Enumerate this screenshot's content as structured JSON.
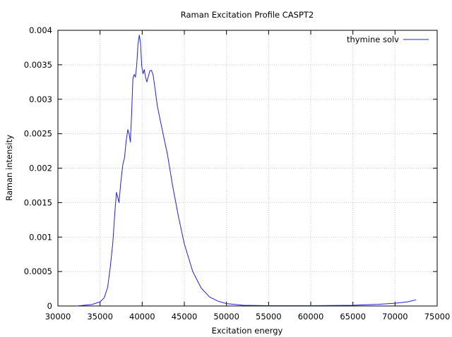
{
  "chart_data": {
    "type": "line",
    "title": "Raman Excitation Profile CASPT2",
    "xlabel": "Excitation energy",
    "ylabel": "Raman intensity",
    "xlim": [
      30000,
      75000
    ],
    "ylim": [
      0,
      0.004
    ],
    "x_ticks": [
      "30000",
      "35000",
      "40000",
      "45000",
      "50000",
      "55000",
      "60000",
      "65000",
      "70000",
      "75000"
    ],
    "y_ticks": [
      "0",
      "0.0005",
      "0.001",
      "0.0015",
      "0.002",
      "0.0025",
      "0.003",
      "0.0035",
      "0.004"
    ],
    "grid": true,
    "legend": "top-right",
    "series": [
      {
        "name": "thymine solv",
        "color": "#2020e0",
        "points": [
          [
            32200,
            0.0
          ],
          [
            34000,
            2e-05
          ],
          [
            35000,
            6e-05
          ],
          [
            35500,
            0.00012
          ],
          [
            35900,
            0.00027
          ],
          [
            36200,
            0.00055
          ],
          [
            36500,
            0.0009
          ],
          [
            36750,
            0.00135
          ],
          [
            36950,
            0.00165
          ],
          [
            37100,
            0.00158
          ],
          [
            37250,
            0.0015
          ],
          [
            37450,
            0.00178
          ],
          [
            37700,
            0.00205
          ],
          [
            37900,
            0.00215
          ],
          [
            38100,
            0.0024
          ],
          [
            38300,
            0.00256
          ],
          [
            38450,
            0.0025
          ],
          [
            38600,
            0.00238
          ],
          [
            38750,
            0.0028
          ],
          [
            38900,
            0.0033
          ],
          [
            39050,
            0.00336
          ],
          [
            39200,
            0.00332
          ],
          [
            39350,
            0.0035
          ],
          [
            39500,
            0.0038
          ],
          [
            39650,
            0.00393
          ],
          [
            39800,
            0.00382
          ],
          [
            39950,
            0.00348
          ],
          [
            40100,
            0.00337
          ],
          [
            40250,
            0.00343
          ],
          [
            40400,
            0.00332
          ],
          [
            40550,
            0.00325
          ],
          [
            40700,
            0.00332
          ],
          [
            40900,
            0.00341
          ],
          [
            41100,
            0.00342
          ],
          [
            41300,
            0.00335
          ],
          [
            41500,
            0.00318
          ],
          [
            41800,
            0.0029
          ],
          [
            42300,
            0.0026
          ],
          [
            43000,
            0.0022
          ],
          [
            43600,
            0.00175
          ],
          [
            44300,
            0.0013
          ],
          [
            45000,
            0.0009
          ],
          [
            46000,
            0.0005
          ],
          [
            47000,
            0.00026
          ],
          [
            48000,
            0.00013
          ],
          [
            49000,
            7e-05
          ],
          [
            50000,
            3.5e-05
          ],
          [
            52000,
            1e-05
          ],
          [
            55000,
            5e-06
          ],
          [
            60000,
            5e-06
          ],
          [
            65000,
            1e-05
          ],
          [
            68000,
            2.5e-05
          ],
          [
            70000,
            4e-05
          ],
          [
            71500,
            6e-05
          ],
          [
            72500,
            9e-05
          ]
        ]
      }
    ]
  }
}
